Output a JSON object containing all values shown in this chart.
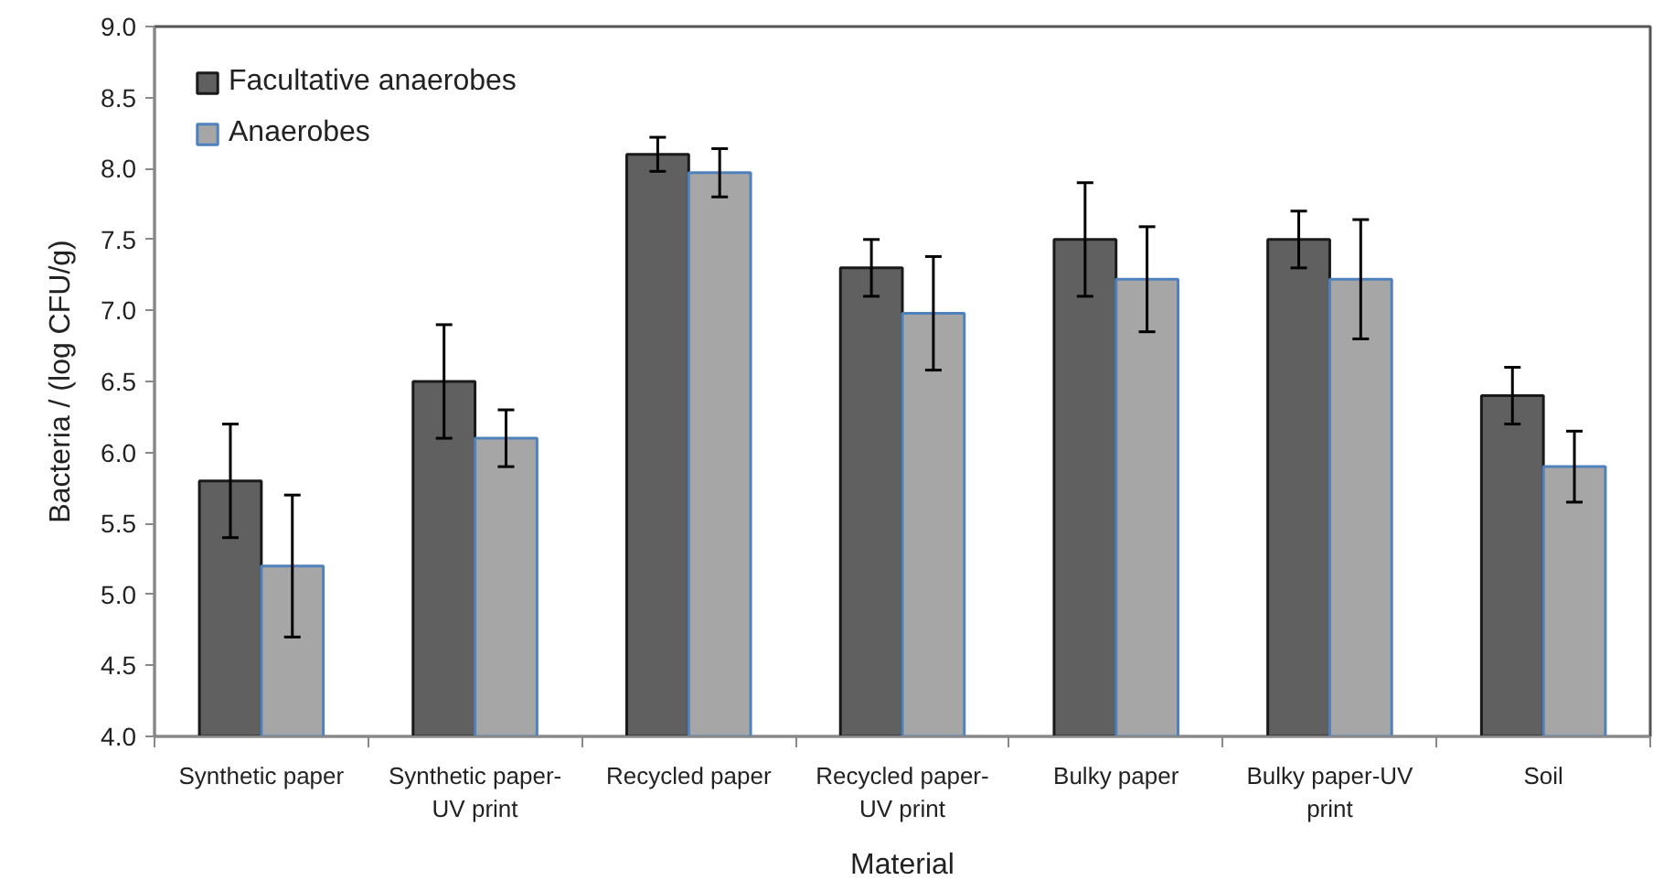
{
  "chart_data": {
    "type": "bar",
    "xlabel": "Material",
    "ylabel": "Bacteria / (log CFU/g)",
    "categories": [
      "Synthetic paper",
      "Synthetic paper-UV print",
      "Recycled paper",
      "Recycled paper-UV print",
      "Bulky paper",
      "Bulky paper-UV print",
      "Soil"
    ],
    "series": [
      {
        "name": "Facultative anaerobes",
        "color": "#606060",
        "values": [
          5.8,
          6.5,
          8.1,
          7.3,
          7.5,
          7.5,
          6.4
        ],
        "errors": [
          0.4,
          0.4,
          0.12,
          0.2,
          0.4,
          0.2,
          0.2
        ]
      },
      {
        "name": "Anaerobes",
        "color": "#a6a6a6",
        "values": [
          5.2,
          6.1,
          7.97,
          6.98,
          7.22,
          7.22,
          5.9
        ],
        "errors": [
          0.5,
          0.2,
          0.17,
          0.4,
          0.37,
          0.42,
          0.25
        ]
      }
    ],
    "ylim": [
      4,
      9
    ],
    "yticks": [
      {
        "value": 4,
        "label": "4.0"
      },
      4.5,
      {
        "value": 5,
        "label": "5.0"
      },
      5.5,
      {
        "value": 6,
        "label": "6.0"
      },
      6.5,
      {
        "value": 7,
        "label": "7.0"
      },
      7.5,
      {
        "value": 8,
        "label": "8.0"
      },
      8.5,
      {
        "value": 9,
        "label": "9.0"
      }
    ],
    "grid": false,
    "legend": "top left"
  }
}
